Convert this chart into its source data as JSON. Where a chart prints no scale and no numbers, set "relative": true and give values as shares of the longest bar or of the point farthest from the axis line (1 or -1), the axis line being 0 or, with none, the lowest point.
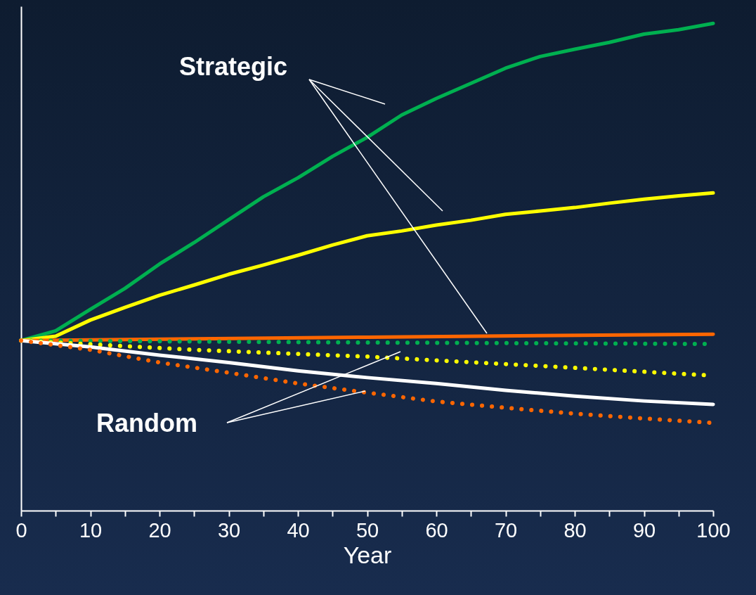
{
  "chart_data": {
    "type": "line",
    "relative": true,
    "xlabel": "Year",
    "x": [
      0,
      10,
      20,
      30,
      40,
      50,
      60,
      70,
      80,
      90,
      100
    ],
    "xlim": [
      0,
      100
    ],
    "xticks": [
      0,
      {
        "value": 5,
        "label": null
      },
      10,
      {
        "value": 15,
        "label": null
      },
      20,
      {
        "value": 25,
        "label": null
      },
      30,
      {
        "value": 35,
        "label": null
      },
      40,
      {
        "value": 45,
        "label": null
      },
      50,
      {
        "value": 55,
        "label": null
      },
      60,
      {
        "value": 65,
        "label": null
      },
      70,
      {
        "value": 75,
        "label": null
      },
      80,
      {
        "value": 85,
        "label": null
      },
      90,
      {
        "value": 95,
        "label": null
      },
      100
    ],
    "grid": false,
    "tick_labels": "x",
    "marker": "none",
    "annotations": [
      "Strategic",
      "Random"
    ],
    "series": [
      {
        "color": "#00b050",
        "line_style": "solid",
        "x": [
          0,
          5,
          10,
          15,
          20,
          25,
          30,
          35,
          40,
          45,
          50,
          55,
          60,
          65,
          70,
          75,
          80,
          85,
          90,
          95,
          100
        ],
        "values": [
          0.349,
          0.369,
          0.413,
          0.456,
          0.506,
          0.55,
          0.597,
          0.644,
          0.683,
          0.727,
          0.766,
          0.812,
          0.846,
          0.877,
          0.908,
          0.932,
          0.947,
          0.961,
          0.978,
          0.987,
          1.0
        ]
      },
      {
        "color": "#ffff00",
        "line_style": "solid",
        "x": [
          0,
          5,
          10,
          15,
          20,
          25,
          30,
          35,
          40,
          45,
          50,
          55,
          60,
          65,
          70,
          75,
          80,
          85,
          90,
          95,
          100
        ],
        "values": [
          0.349,
          0.358,
          0.391,
          0.417,
          0.442,
          0.463,
          0.485,
          0.504,
          0.524,
          0.545,
          0.564,
          0.574,
          0.586,
          0.596,
          0.608,
          0.615,
          0.622,
          0.631,
          0.639,
          0.646,
          0.652
        ]
      },
      {
        "color": "#ff6600",
        "line_style": "solid",
        "x": [
          0,
          50,
          100
        ],
        "values": [
          0.349,
          0.356,
          0.362
        ]
      },
      {
        "color": "#00b050",
        "line_style": "dotted",
        "x": [
          0,
          50,
          100
        ],
        "values": [
          0.349,
          0.345,
          0.342
        ]
      },
      {
        "color": "#ffff00",
        "line_style": "dotted",
        "x": [
          0,
          25,
          50,
          75,
          100
        ],
        "values": [
          0.349,
          0.33,
          0.316,
          0.297,
          0.277
        ]
      },
      {
        "color": "#ffffff",
        "line_style": "solid",
        "values": [
          0.349,
          0.336,
          0.319,
          0.304,
          0.287,
          0.273,
          0.261,
          0.247,
          0.235,
          0.225,
          0.218
        ]
      },
      {
        "color": "#ff6600",
        "line_style": "dotted",
        "values": [
          0.349,
          0.33,
          0.304,
          0.283,
          0.261,
          0.242,
          0.224,
          0.211,
          0.199,
          0.189,
          0.18
        ]
      }
    ]
  }
}
